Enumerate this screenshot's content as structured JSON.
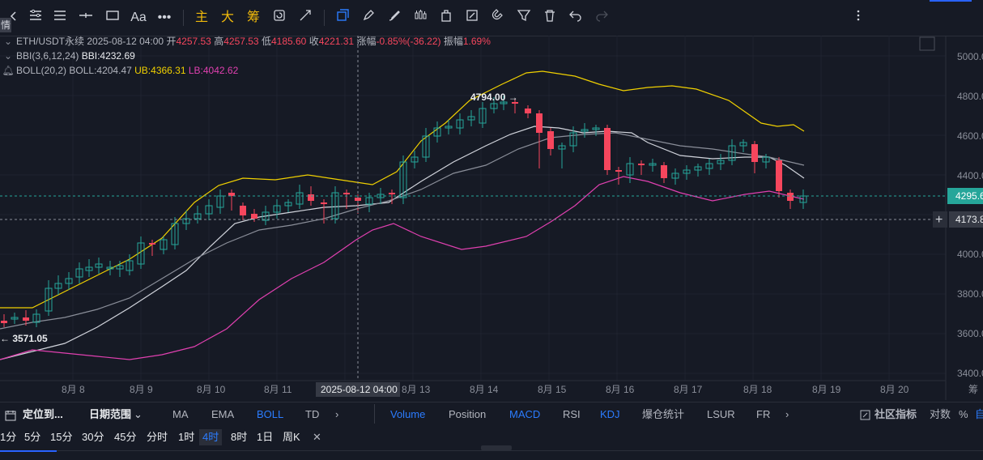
{
  "side_tag": "情",
  "toolbar": {
    "draw_text_label": "Aa",
    "main_label": "主",
    "large_label": "大",
    "chips_label": "筹"
  },
  "legend": {
    "symbol": "ETH/USDT永续",
    "datetime": "2025-08-12 04:00",
    "open_label": "开",
    "open": "4257.53",
    "high_label": "高",
    "high": "4257.53",
    "low_label": "低",
    "low": "4185.60",
    "close_label": "收",
    "close": "4221.31",
    "change_label": "涨幅",
    "change": "-0.85%(-36.22)",
    "amp_label": "振幅",
    "amp": "1.69%",
    "bbi_name": "BBI(3,6,12,24)",
    "bbi_value": "BBI:4232.69",
    "boll_name": "BOLL(20,2)",
    "boll_mid": "BOLL:4204.47",
    "boll_ub": "UB:4366.31",
    "boll_lb": "LB:4042.62"
  },
  "chart": {
    "price_ticks": [
      "5000.0",
      "4800.0",
      "4600.0",
      "4400.0",
      "4000.0",
      "3800.0",
      "3600.0",
      "3400.0"
    ],
    "date_ticks": [
      "8月 8",
      "8月 9",
      "8月 10",
      "8月 11",
      "8月 13",
      "8月 14",
      "8月 15",
      "8月 16",
      "8月 17",
      "8月 18",
      "8月 19",
      "8月 20"
    ],
    "crosshair_time": "2025-08-12 04:00",
    "last_price": "4295.6",
    "crosshair_price": "4173.8",
    "high_marker": "4794.00 →",
    "low_marker": "← 3571.05",
    "axis_corner": "筹",
    "colors": {
      "up": "#26a69a",
      "down": "#f6465d",
      "ub": "#f0d000",
      "lb": "#e040b0",
      "mid": "#d1d4dc",
      "bbi": "#8a8e99"
    }
  },
  "bottom_bar": {
    "locate": "定位到...",
    "date_range": "日期范围",
    "ma": "MA",
    "ema": "EMA",
    "boll": "BOLL",
    "td": "TD",
    "volume": "Volume",
    "position": "Position",
    "macd": "MACD",
    "rsi": "RSI",
    "kdj": "KDJ",
    "liq": "爆仓统计",
    "lsur": "LSUR",
    "fr": "FR",
    "community": "社区指标",
    "log": "对数",
    "pct": "%",
    "auto": "自"
  },
  "intervals": [
    "1分",
    "5分",
    "15分",
    "30分",
    "45分",
    "分时",
    "1时",
    "4时",
    "8时",
    "1日",
    "周K"
  ],
  "selected_interval": "4时"
}
